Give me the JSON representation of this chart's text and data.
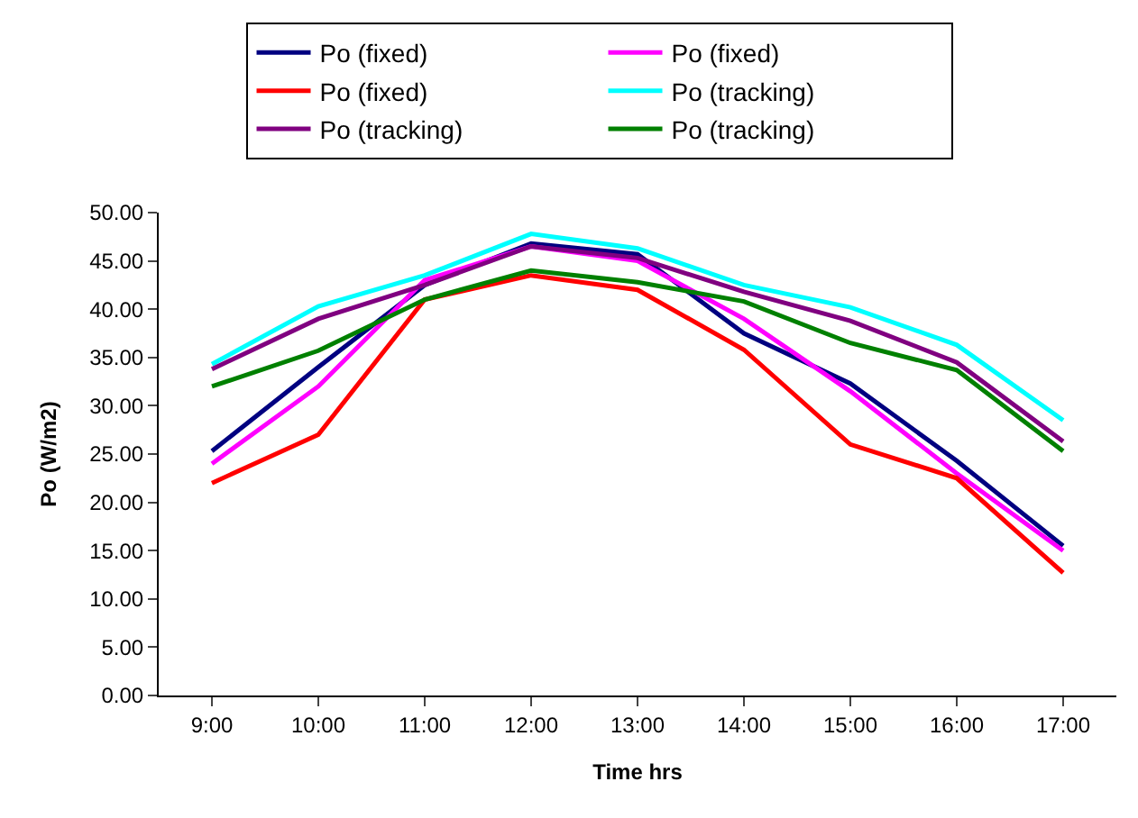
{
  "chart_data": {
    "type": "line",
    "xlabel": "Time hrs",
    "ylabel": "Po (W/m2)",
    "categories": [
      "9:00",
      "10:00",
      "11:00",
      "12:00",
      "13:00",
      "14:00",
      "15:00",
      "16:00",
      "17:00"
    ],
    "series": [
      {
        "name": "Po (fixed)",
        "color": "#000080",
        "values": [
          25.3,
          34.0,
          42.5,
          46.8,
          45.7,
          37.5,
          32.3,
          24.3,
          15.5
        ]
      },
      {
        "name": "Po (fixed)",
        "color": "#ff00ff",
        "values": [
          24.0,
          32.0,
          43.0,
          46.5,
          45.0,
          39.0,
          31.5,
          23.0,
          15.0
        ]
      },
      {
        "name": "Po (fixed)",
        "color": "#ff0000",
        "values": [
          22.0,
          27.0,
          41.0,
          43.5,
          42.0,
          35.8,
          26.0,
          22.5,
          12.7
        ]
      },
      {
        "name": "Po (tracking)",
        "color": "#00ffff",
        "values": [
          34.3,
          40.3,
          43.5,
          47.8,
          46.3,
          42.5,
          40.2,
          36.3,
          28.5
        ]
      },
      {
        "name": "Po (tracking)",
        "color": "#800080",
        "values": [
          33.8,
          39.0,
          42.5,
          46.5,
          45.3,
          41.8,
          38.8,
          34.5,
          26.3
        ]
      },
      {
        "name": "Po (tracking)",
        "color": "#008000",
        "values": [
          32.0,
          35.7,
          41.0,
          44.0,
          42.8,
          40.8,
          36.5,
          33.7,
          25.3
        ]
      }
    ],
    "ylim": [
      0,
      50
    ],
    "yticks": [
      {
        "value": 0,
        "label": "0.00"
      },
      {
        "value": 5,
        "label": "5.00"
      },
      {
        "value": 10,
        "label": "10.00"
      },
      {
        "value": 15,
        "label": "15.00"
      },
      {
        "value": 20,
        "label": "20.00"
      },
      {
        "value": 25,
        "label": "25.00"
      },
      {
        "value": 30,
        "label": "30.00"
      },
      {
        "value": 35,
        "label": "35.00"
      },
      {
        "value": 40,
        "label": "40.00"
      },
      {
        "value": 45,
        "label": "45.00"
      },
      {
        "value": 50,
        "label": "50.00"
      }
    ],
    "legend": "top",
    "marker": "none",
    "line_style": "solid"
  }
}
